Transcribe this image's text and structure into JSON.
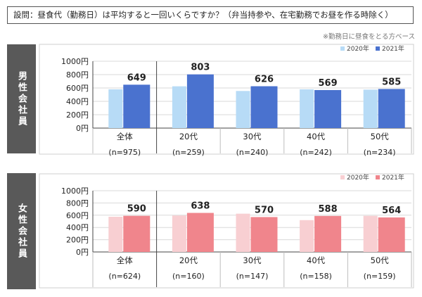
{
  "question": "設問：昼食代（勤務日）は平均すると一回いくらですか？（弁当持参や、在宅勤務でお昼を作る時除く）",
  "note": "※勤務日に昼食をとる方ベース",
  "colors": {
    "male_2020": "#b7dbf6",
    "male_2021": "#4a72cf",
    "female_2020": "#f8cfd2",
    "female_2021": "#f0858c",
    "sidebar": "#595959"
  },
  "chart_data": [
    {
      "type": "bar",
      "panel_label": "男性会社員",
      "categories": [
        "全体",
        "20代",
        "30代",
        "40代",
        "50代"
      ],
      "sample_sizes": [
        "(n=975)",
        "(n=259)",
        "(n=240)",
        "(n=242)",
        "(n=234)"
      ],
      "series": [
        {
          "name": "2020年",
          "values": [
            580,
            625,
            555,
            580,
            575
          ]
        },
        {
          "name": "2021年",
          "values": [
            649,
            803,
            626,
            569,
            585
          ]
        }
      ],
      "data_labels": [
        "649",
        "803",
        "626",
        "569",
        "585"
      ],
      "yticks": [
        "1000円",
        "800円",
        "600円",
        "400円",
        "200円",
        "0円"
      ],
      "ylim": [
        0,
        1000
      ],
      "legend": "top-right"
    },
    {
      "type": "bar",
      "panel_label": "女性会社員",
      "categories": [
        "全体",
        "20代",
        "30代",
        "40代",
        "50代"
      ],
      "sample_sizes": [
        "(n=624)",
        "(n=160)",
        "(n=147)",
        "(n=158)",
        "(n=159)"
      ],
      "series": [
        {
          "name": "2020年",
          "values": [
            575,
            595,
            625,
            520,
            590
          ]
        },
        {
          "name": "2021年",
          "values": [
            590,
            638,
            570,
            588,
            564
          ]
        }
      ],
      "data_labels": [
        "590",
        "638",
        "570",
        "588",
        "564"
      ],
      "yticks": [
        "1000円",
        "800円",
        "600円",
        "400円",
        "200円",
        "0円"
      ],
      "ylim": [
        0,
        1000
      ],
      "legend": "top-right"
    }
  ]
}
